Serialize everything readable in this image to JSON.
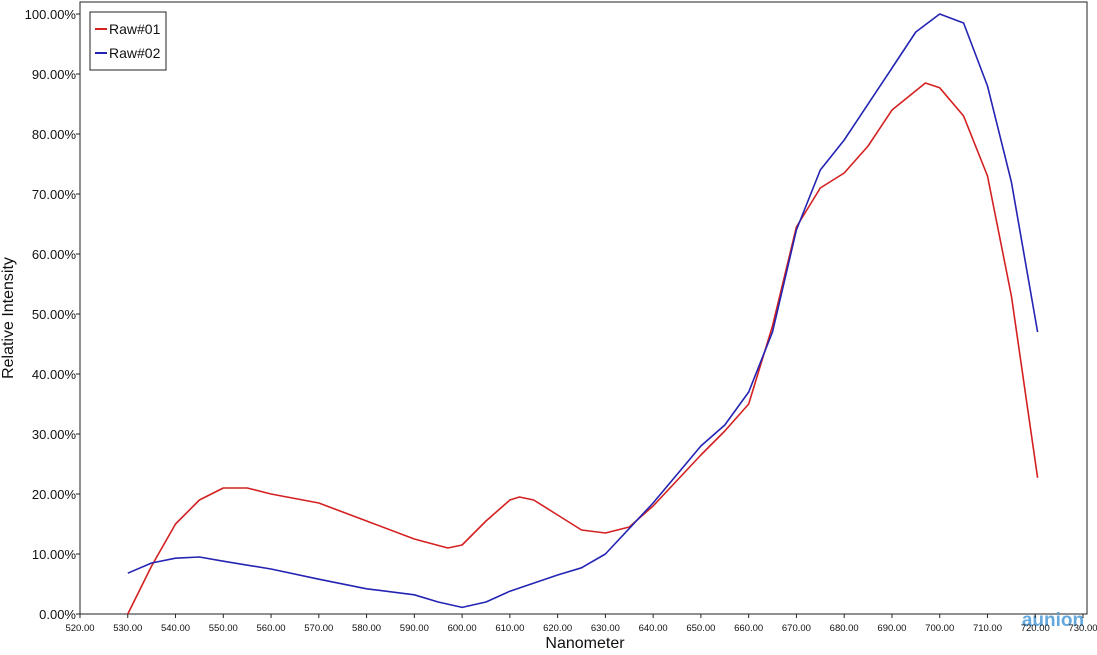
{
  "chart_data": {
    "type": "line",
    "x_label": "Nanometer",
    "y_label": "Relative Intensity",
    "xlim": [
      520,
      730
    ],
    "ylim": [
      0,
      102
    ],
    "xticks": [
      {
        "value": 520,
        "label": "520.00"
      },
      {
        "value": 530,
        "label": "530.00"
      },
      {
        "value": 540,
        "label": "540.00"
      },
      {
        "value": 550,
        "label": "550.00"
      },
      {
        "value": 560,
        "label": "560.00"
      },
      {
        "value": 570,
        "label": "570.00"
      },
      {
        "value": 580,
        "label": "580.00"
      },
      {
        "value": 590,
        "label": "590.00"
      },
      {
        "value": 600,
        "label": "600.00"
      },
      {
        "value": 610,
        "label": "610.00"
      },
      {
        "value": 620,
        "label": "620.00"
      },
      {
        "value": 630,
        "label": "630.00"
      },
      {
        "value": 640,
        "label": "640.00"
      },
      {
        "value": 650,
        "label": "650.00"
      },
      {
        "value": 660,
        "label": "660.00"
      },
      {
        "value": 670,
        "label": "670.00"
      },
      {
        "value": 680,
        "label": "680.00"
      },
      {
        "value": 690,
        "label": "690.00"
      },
      {
        "value": 700,
        "label": "700.00"
      },
      {
        "value": 710,
        "label": "710.00"
      },
      {
        "value": 720,
        "label": "720.00"
      },
      {
        "value": 730,
        "label": "730.00"
      }
    ],
    "yticks": [
      {
        "value": 0,
        "label": "0.00%"
      },
      {
        "value": 10,
        "label": "10.00%"
      },
      {
        "value": 20,
        "label": "20.00%"
      },
      {
        "value": 30,
        "label": "30.00%"
      },
      {
        "value": 40,
        "label": "40.00%"
      },
      {
        "value": 50,
        "label": "50.00%"
      },
      {
        "value": 60,
        "label": "60.00%"
      },
      {
        "value": 70,
        "label": "70.00%"
      },
      {
        "value": 80,
        "label": "80.00%"
      },
      {
        "value": 90,
        "label": "90.00%"
      },
      {
        "value": 100,
        "label": "100.00%"
      }
    ],
    "legend": "top-left",
    "series": [
      {
        "name": "Raw#01",
        "color": "#d42020",
        "x": [
          530,
          535,
          540,
          545,
          550,
          555,
          560,
          570,
          580,
          590,
          597,
          600,
          605,
          610,
          612,
          615,
          620,
          625,
          630,
          635,
          640,
          650,
          655,
          660,
          665,
          670,
          675,
          680,
          685,
          690,
          697,
          700,
          705,
          710,
          715,
          720.5
        ],
        "values": [
          0,
          8,
          15,
          19,
          21,
          21,
          20,
          18.5,
          15.5,
          12.5,
          11,
          11.5,
          15.5,
          19,
          19.5,
          19,
          16.5,
          14,
          13.5,
          14.5,
          18,
          26.5,
          30.5,
          35,
          48,
          64.5,
          71,
          73.5,
          78,
          84,
          88.5,
          87.7,
          83,
          73,
          53,
          22.7
        ]
      },
      {
        "name": "Raw#02",
        "color": "#2424b4",
        "x": [
          530,
          535,
          540,
          545,
          550,
          560,
          570,
          580,
          590,
          595,
          600,
          605,
          610,
          620,
          625,
          630,
          640,
          650,
          655,
          660,
          665,
          670,
          675,
          680,
          690,
          695,
          700,
          705,
          710,
          715,
          720.5
        ],
        "values": [
          6.8,
          8.5,
          9.3,
          9.5,
          8.8,
          7.5,
          5.8,
          4.2,
          3.2,
          2,
          1.1,
          2,
          3.8,
          6.5,
          7.7,
          10,
          18.5,
          28,
          31.5,
          37,
          47,
          64,
          74,
          79,
          91,
          97,
          100,
          98.5,
          88,
          72,
          47
        ]
      }
    ],
    "watermark": "aunion"
  }
}
